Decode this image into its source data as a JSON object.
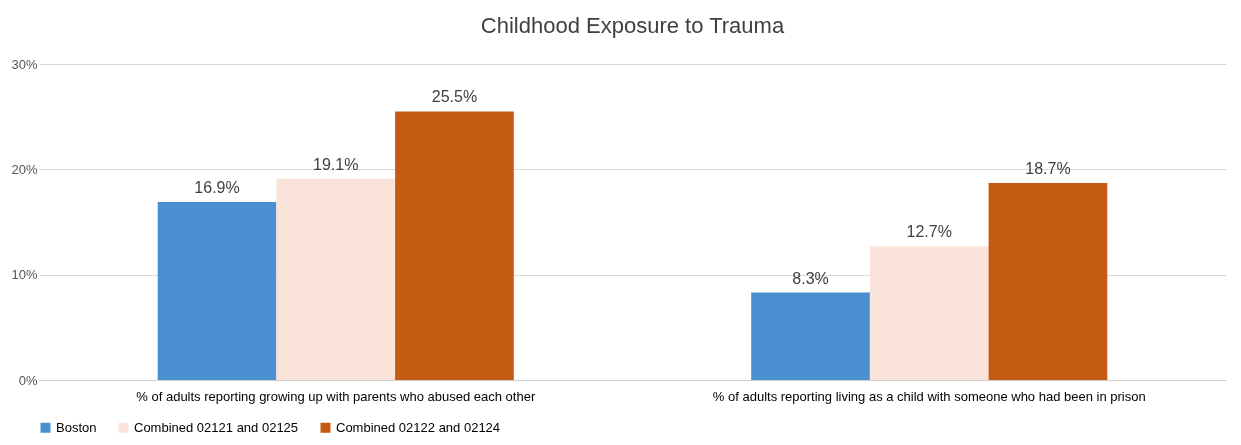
{
  "chart_data": {
    "type": "bar",
    "title": "Childhood Exposure to Trauma",
    "categories": [
      "% of adults reporting growing up with parents who abused each other",
      "% of adults reporting living as a child with someone who had been in prison"
    ],
    "series": [
      {
        "name": "Boston",
        "color": "#4a8fd0",
        "values": [
          16.9,
          8.3
        ],
        "value_labels": [
          "16.9%",
          "8.3%"
        ]
      },
      {
        "name": "Combined 02121 and 02125",
        "color": "#fae3d8",
        "values": [
          19.1,
          12.7
        ],
        "value_labels": [
          "19.1%",
          "12.7%"
        ]
      },
      {
        "name": "Combined 02122 and 02124",
        "color": "#c55a11",
        "values": [
          25.5,
          18.7
        ],
        "value_labels": [
          "25.5%",
          "18.7%"
        ]
      }
    ],
    "ylim": [
      0,
      30
    ],
    "yticks": [
      {
        "value": 0,
        "label": "0%"
      },
      {
        "value": 10,
        "label": "10%"
      },
      {
        "value": 20,
        "label": "20%"
      },
      {
        "value": 30,
        "label": "30%"
      }
    ],
    "grid": "y",
    "legend": "bottom"
  }
}
